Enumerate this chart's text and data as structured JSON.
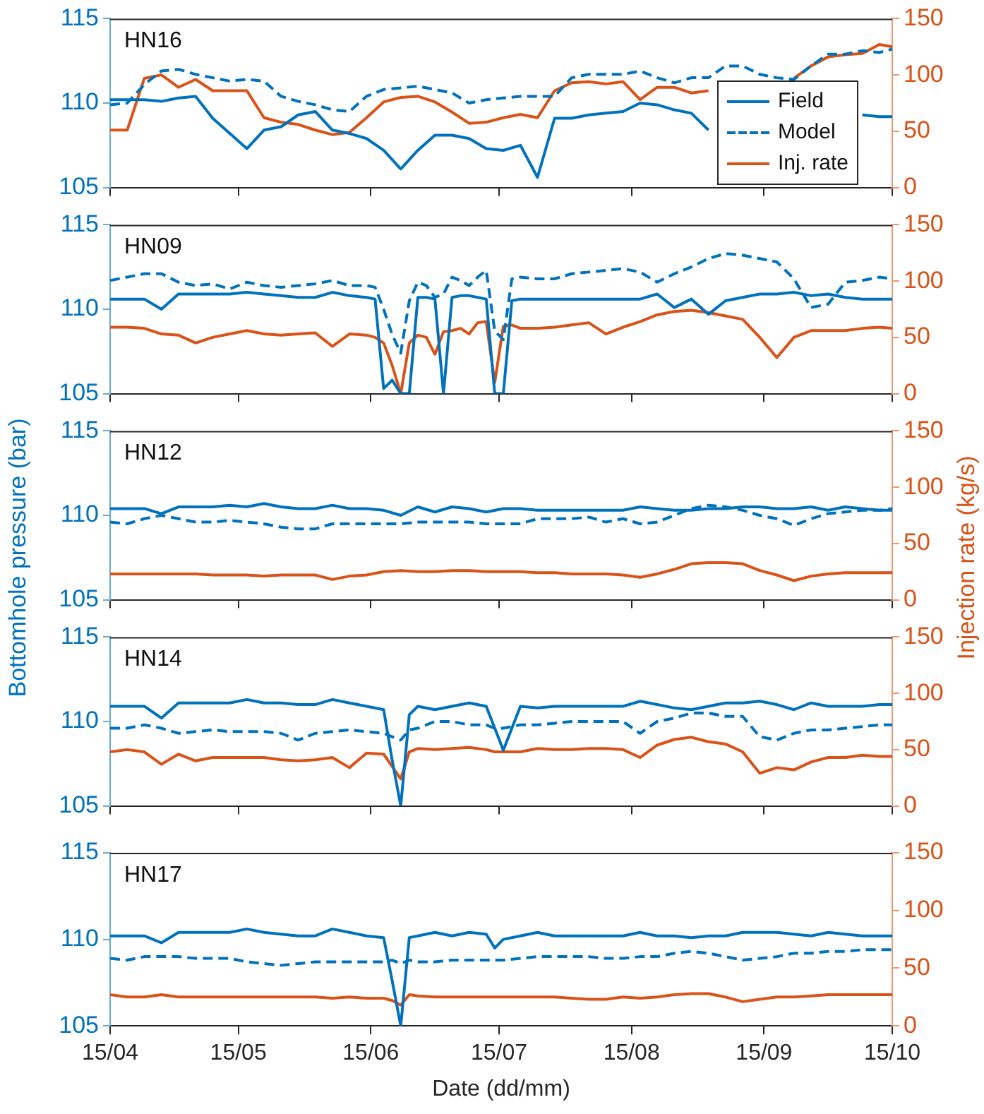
{
  "chart_data": [
    {
      "type": "line",
      "title": "HN16",
      "legend": "bottom right",
      "tick_labels": "y",
      "x": [
        "--04-15",
        "--04-19",
        "--04-23",
        "--04-27",
        "--05-01",
        "--05-05",
        "--05-09",
        "--05-13",
        "--05-17",
        "--05-21",
        "--05-25",
        "--05-29",
        "--06-02",
        "--06-06",
        "--06-10",
        "--06-14",
        "--06-18",
        "--06-22",
        "--06-26",
        "--06-30",
        "--07-04",
        "--07-08",
        "--07-12",
        "--07-16",
        "--07-20",
        "--07-24",
        "--07-28",
        "--08-01",
        "--08-05",
        "--08-09",
        "--08-13",
        "--08-17",
        "--08-21",
        "--08-25",
        "--08-29",
        "--09-02",
        "--09-06",
        "--09-10",
        "--09-14",
        "--09-18",
        "--09-22",
        "--09-26",
        "--09-30",
        "--10-04",
        "--10-08",
        "--10-12",
        "--10-15"
      ],
      "xlim": [
        "--04-15",
        "--10-15"
      ],
      "xticks": [
        {
          "value": "--04-15",
          "label": null
        },
        {
          "value": "--05-15",
          "label": null
        },
        {
          "value": "--06-15",
          "label": null
        },
        {
          "value": "--07-15",
          "label": null
        },
        {
          "value": "--08-15",
          "label": null
        },
        {
          "value": "--09-15",
          "label": null
        },
        {
          "value": "--10-15",
          "label": null
        }
      ],
      "ylim": [
        105,
        115
      ],
      "yticks": [
        105,
        110,
        115
      ],
      "y2lim": [
        0,
        150
      ],
      "y2ticks": [
        0,
        50,
        100,
        150
      ],
      "series": [
        {
          "name": "Field",
          "color": "#0072bd",
          "values": [
            110.2,
            110.2,
            110.2,
            110.1,
            110.3,
            110.4,
            109.1,
            108.2,
            107.3,
            108.4,
            108.6,
            109.3,
            109.5,
            108.4,
            108.2,
            107.9,
            107.2,
            106.1,
            107.2,
            108.1,
            108.1,
            107.9,
            107.3,
            107.2,
            107.5,
            105.6,
            109.1,
            109.1,
            109.3,
            109.4,
            109.5,
            110.0,
            109.9,
            109.6,
            109.4,
            108.4,
            null,
            null,
            null,
            null,
            null,
            null,
            null,
            null,
            109.3,
            109.2,
            109.2
          ]
        },
        {
          "name": "Model",
          "color": "#0072bd",
          "line_style": "dashed",
          "values": [
            109.9,
            110.0,
            111.1,
            111.9,
            112.0,
            111.7,
            111.5,
            111.3,
            111.4,
            111.3,
            110.4,
            110.1,
            109.9,
            109.6,
            109.5,
            110.4,
            110.8,
            110.9,
            111.0,
            110.8,
            110.6,
            110.0,
            110.2,
            110.3,
            110.4,
            110.4,
            110.4,
            111.5,
            111.7,
            111.7,
            111.7,
            111.9,
            111.5,
            111.2,
            111.5,
            111.5,
            112.2,
            112.2,
            111.7,
            111.5,
            111.4,
            112.2,
            112.9,
            112.9,
            113.1,
            113.0,
            113.2
          ]
        },
        {
          "name": "Inj. rate",
          "color": "#d95319",
          "axis": "y2",
          "values": [
            51,
            51,
            97,
            100,
            89,
            96,
            86,
            86,
            86,
            62,
            58,
            56,
            51,
            47,
            49,
            62,
            76,
            80,
            81,
            76,
            67,
            57,
            58,
            62,
            65,
            62,
            86,
            93,
            94,
            92,
            94,
            78,
            89,
            89,
            84,
            86,
            null,
            null,
            null,
            null,
            97,
            108,
            116,
            118,
            119,
            127,
            125
          ]
        }
      ]
    },
    {
      "type": "line",
      "title": "HN09",
      "tick_labels": "y",
      "x": [
        "--04-15",
        "--04-19",
        "--04-23",
        "--04-27",
        "--05-01",
        "--05-05",
        "--05-09",
        "--05-13",
        "--05-17",
        "--05-21",
        "--05-25",
        "--05-29",
        "--06-02",
        "--06-06",
        "--06-10",
        "--06-14",
        "--06-16",
        "--06-18",
        "--06-20",
        "--06-22",
        "--06-24",
        "--06-26",
        "--06-28",
        "--06-30",
        "--07-02",
        "--07-04",
        "--07-06",
        "--07-08",
        "--07-10",
        "--07-12",
        "--07-14",
        "--07-16",
        "--07-18",
        "--07-20",
        "--07-24",
        "--07-28",
        "--08-01",
        "--08-05",
        "--08-09",
        "--08-13",
        "--08-17",
        "--08-21",
        "--08-25",
        "--08-29",
        "--09-02",
        "--09-06",
        "--09-10",
        "--09-14",
        "--09-18",
        "--09-22",
        "--09-26",
        "--09-30",
        "--10-04",
        "--10-08",
        "--10-12",
        "--10-15"
      ],
      "xlim": [
        "--04-15",
        "--10-15"
      ],
      "xticks": [
        {
          "value": "--04-15",
          "label": null
        },
        {
          "value": "--05-15",
          "label": null
        },
        {
          "value": "--06-15",
          "label": null
        },
        {
          "value": "--07-15",
          "label": null
        },
        {
          "value": "--08-15",
          "label": null
        },
        {
          "value": "--09-15",
          "label": null
        },
        {
          "value": "--10-15",
          "label": null
        }
      ],
      "ylim": [
        105,
        115
      ],
      "yticks": [
        105,
        110,
        115
      ],
      "y2lim": [
        0,
        150
      ],
      "y2ticks": [
        0,
        50,
        100,
        150
      ],
      "series": [
        {
          "color": "#0072bd",
          "values": [
            110.6,
            110.6,
            110.6,
            110.0,
            110.9,
            110.9,
            110.9,
            110.9,
            111.0,
            110.9,
            110.8,
            110.7,
            110.7,
            111.0,
            110.8,
            110.7,
            110.6,
            105.3,
            105.8,
            105.0,
            105.0,
            110.7,
            110.7,
            110.6,
            105.0,
            110.7,
            110.8,
            110.8,
            110.7,
            110.6,
            105.0,
            105.0,
            110.5,
            110.6,
            110.6,
            110.6,
            110.6,
            110.6,
            110.6,
            110.6,
            110.6,
            110.9,
            110.1,
            110.6,
            109.7,
            110.5,
            110.7,
            110.9,
            110.9,
            111.0,
            110.8,
            110.9,
            110.7,
            110.6,
            110.6,
            110.6
          ]
        },
        {
          "color": "#0072bd",
          "line_style": "dashed",
          "values": [
            111.7,
            111.9,
            112.1,
            112.1,
            111.6,
            111.4,
            111.5,
            111.2,
            111.6,
            111.4,
            111.3,
            111.4,
            111.5,
            111.7,
            111.4,
            111.4,
            111.3,
            110.0,
            108.5,
            107.4,
            110.5,
            111.6,
            111.4,
            110.7,
            110.9,
            111.9,
            111.7,
            111.4,
            111.9,
            112.3,
            108.7,
            108.2,
            111.8,
            111.9,
            111.8,
            111.8,
            112.1,
            112.2,
            112.3,
            112.4,
            112.2,
            111.6,
            112.1,
            112.5,
            113.0,
            113.3,
            113.2,
            113.0,
            112.8,
            111.8,
            110.1,
            110.3,
            111.6,
            111.7,
            111.9,
            111.8
          ]
        },
        {
          "color": "#d95319",
          "axis": "y2",
          "values": [
            59,
            59,
            58,
            53,
            52,
            45,
            50,
            53,
            56,
            53,
            52,
            53,
            54,
            42,
            53,
            52,
            50,
            45,
            25,
            0,
            45,
            52,
            50,
            35,
            55,
            56,
            58,
            53,
            63,
            64,
            10,
            60,
            61,
            58,
            58,
            59,
            61,
            63,
            53,
            59,
            64,
            70,
            73,
            74,
            72,
            69,
            66,
            50,
            32,
            50,
            56,
            56,
            56,
            58,
            59,
            58
          ]
        }
      ]
    },
    {
      "type": "line",
      "title": "HN12",
      "tick_labels": "y",
      "ylabel": "Bottomhole pressure (bar)",
      "y2label": "Injection rate (kg/s)",
      "x": [
        "--04-15",
        "--04-19",
        "--04-23",
        "--04-27",
        "--05-01",
        "--05-05",
        "--05-09",
        "--05-13",
        "--05-17",
        "--05-21",
        "--05-25",
        "--05-29",
        "--06-02",
        "--06-06",
        "--06-10",
        "--06-14",
        "--06-18",
        "--06-22",
        "--06-26",
        "--06-30",
        "--07-04",
        "--07-08",
        "--07-12",
        "--07-16",
        "--07-20",
        "--07-24",
        "--07-28",
        "--08-01",
        "--08-05",
        "--08-09",
        "--08-13",
        "--08-17",
        "--08-21",
        "--08-25",
        "--08-29",
        "--09-02",
        "--09-06",
        "--09-10",
        "--09-14",
        "--09-18",
        "--09-22",
        "--09-26",
        "--09-30",
        "--10-04",
        "--10-08",
        "--10-12",
        "--10-15"
      ],
      "xlim": [
        "--04-15",
        "--10-15"
      ],
      "xticks": [
        {
          "value": "--04-15",
          "label": null
        },
        {
          "value": "--05-15",
          "label": null
        },
        {
          "value": "--06-15",
          "label": null
        },
        {
          "value": "--07-15",
          "label": null
        },
        {
          "value": "--08-15",
          "label": null
        },
        {
          "value": "--09-15",
          "label": null
        },
        {
          "value": "--10-15",
          "label": null
        }
      ],
      "ylim": [
        105,
        115
      ],
      "yticks": [
        105,
        110,
        115
      ],
      "y2lim": [
        0,
        150
      ],
      "y2ticks": [
        0,
        50,
        100,
        150
      ],
      "series": [
        {
          "color": "#0072bd",
          "values": [
            110.4,
            110.4,
            110.4,
            110.1,
            110.5,
            110.5,
            110.5,
            110.6,
            110.5,
            110.7,
            110.5,
            110.4,
            110.4,
            110.6,
            110.4,
            110.4,
            110.3,
            110.0,
            110.5,
            110.2,
            110.5,
            110.4,
            110.2,
            110.4,
            110.4,
            110.3,
            110.3,
            110.3,
            110.3,
            110.3,
            110.3,
            110.5,
            110.4,
            110.3,
            110.3,
            110.4,
            110.4,
            110.5,
            110.5,
            110.4,
            110.4,
            110.5,
            110.3,
            110.5,
            110.4,
            110.3,
            110.3
          ]
        },
        {
          "color": "#0072bd",
          "line_style": "dashed",
          "values": [
            109.6,
            109.5,
            109.8,
            110.0,
            109.8,
            109.6,
            109.6,
            109.7,
            109.6,
            109.5,
            109.3,
            109.2,
            109.2,
            109.5,
            109.5,
            109.5,
            109.5,
            109.5,
            109.6,
            109.6,
            109.6,
            109.6,
            109.5,
            109.5,
            109.5,
            109.8,
            109.8,
            109.8,
            109.9,
            109.6,
            109.8,
            109.5,
            109.6,
            110.0,
            110.4,
            110.6,
            110.5,
            110.3,
            110.0,
            109.8,
            109.4,
            109.8,
            110.1,
            110.2,
            110.3,
            110.3,
            110.4
          ]
        },
        {
          "color": "#d95319",
          "axis": "y2",
          "values": [
            23,
            23,
            23,
            23,
            23,
            23,
            22,
            22,
            22,
            21,
            22,
            22,
            22,
            18,
            21,
            22,
            25,
            26,
            25,
            25,
            26,
            26,
            25,
            25,
            25,
            24,
            24,
            23,
            23,
            23,
            22,
            20,
            23,
            27,
            32,
            33,
            33,
            32,
            26,
            22,
            17,
            21,
            23,
            24,
            24,
            24,
            24
          ]
        }
      ]
    },
    {
      "type": "line",
      "title": "HN14",
      "tick_labels": "y",
      "x": [
        "--04-15",
        "--04-19",
        "--04-23",
        "--04-27",
        "--05-01",
        "--05-05",
        "--05-09",
        "--05-13",
        "--05-17",
        "--05-21",
        "--05-25",
        "--05-29",
        "--06-02",
        "--06-06",
        "--06-10",
        "--06-14",
        "--06-18",
        "--06-20",
        "--06-22",
        "--06-24",
        "--06-26",
        "--06-30",
        "--07-04",
        "--07-08",
        "--07-12",
        "--07-14",
        "--07-16",
        "--07-20",
        "--07-24",
        "--07-28",
        "--08-01",
        "--08-05",
        "--08-09",
        "--08-13",
        "--08-17",
        "--08-21",
        "--08-25",
        "--08-29",
        "--09-02",
        "--09-06",
        "--09-10",
        "--09-14",
        "--09-18",
        "--09-22",
        "--09-26",
        "--09-30",
        "--10-04",
        "--10-08",
        "--10-12",
        "--10-15"
      ],
      "xlim": [
        "--04-15",
        "--10-15"
      ],
      "xticks": [
        {
          "value": "--04-15",
          "label": null
        },
        {
          "value": "--05-15",
          "label": null
        },
        {
          "value": "--06-15",
          "label": null
        },
        {
          "value": "--07-15",
          "label": null
        },
        {
          "value": "--08-15",
          "label": null
        },
        {
          "value": "--09-15",
          "label": null
        },
        {
          "value": "--10-15",
          "label": null
        }
      ],
      "ylim": [
        105,
        115
      ],
      "yticks": [
        105,
        110,
        115
      ],
      "y2lim": [
        0,
        150
      ],
      "y2ticks": [
        0,
        50,
        100,
        150
      ],
      "series": [
        {
          "color": "#0072bd",
          "values": [
            110.9,
            110.9,
            110.9,
            110.2,
            111.1,
            111.1,
            111.1,
            111.1,
            111.3,
            111.1,
            111.1,
            111.0,
            111.0,
            111.3,
            111.1,
            110.9,
            110.7,
            107.7,
            105.0,
            110.4,
            110.9,
            110.7,
            110.9,
            111.1,
            110.9,
            109.6,
            108.3,
            110.9,
            110.8,
            110.9,
            110.9,
            110.9,
            110.9,
            110.9,
            111.2,
            111.0,
            110.8,
            110.7,
            110.9,
            111.1,
            111.1,
            111.2,
            111.0,
            110.7,
            111.1,
            110.9,
            110.9,
            110.9,
            111.0,
            111.0
          ]
        },
        {
          "color": "#0072bd",
          "line_style": "dashed",
          "values": [
            109.6,
            109.6,
            109.8,
            109.6,
            109.3,
            109.4,
            109.5,
            109.4,
            109.4,
            109.4,
            109.3,
            108.9,
            109.3,
            109.4,
            109.5,
            109.4,
            109.3,
            109.1,
            108.9,
            109.5,
            109.6,
            110.0,
            110.0,
            109.8,
            109.8,
            109.6,
            109.6,
            109.8,
            109.8,
            109.9,
            110.0,
            110.0,
            110.0,
            110.0,
            109.3,
            110.0,
            110.2,
            110.5,
            110.5,
            110.3,
            110.3,
            109.1,
            108.9,
            109.3,
            109.5,
            109.5,
            109.6,
            109.7,
            109.8,
            109.8
          ]
        },
        {
          "color": "#d95319",
          "axis": "y2",
          "values": [
            48,
            50,
            48,
            37,
            46,
            40,
            43,
            43,
            43,
            43,
            41,
            40,
            41,
            43,
            34,
            47,
            46,
            35,
            24,
            48,
            51,
            50,
            51,
            52,
            50,
            48,
            48,
            48,
            51,
            50,
            50,
            51,
            51,
            50,
            43,
            54,
            59,
            61,
            57,
            55,
            48,
            29,
            34,
            32,
            39,
            43,
            43,
            45,
            44,
            44
          ]
        }
      ]
    },
    {
      "type": "line",
      "title": "HN17",
      "xlabel": "Date (dd/mm)",
      "x": [
        "--04-15",
        "--04-19",
        "--04-23",
        "--04-27",
        "--05-01",
        "--05-05",
        "--05-09",
        "--05-13",
        "--05-17",
        "--05-21",
        "--05-25",
        "--05-29",
        "--06-02",
        "--06-06",
        "--06-10",
        "--06-14",
        "--06-18",
        "--06-20",
        "--06-22",
        "--06-24",
        "--06-26",
        "--06-30",
        "--07-04",
        "--07-08",
        "--07-12",
        "--07-14",
        "--07-16",
        "--07-20",
        "--07-24",
        "--07-28",
        "--08-01",
        "--08-05",
        "--08-09",
        "--08-13",
        "--08-17",
        "--08-21",
        "--08-25",
        "--08-29",
        "--09-02",
        "--09-06",
        "--09-10",
        "--09-14",
        "--09-18",
        "--09-22",
        "--09-26",
        "--09-30",
        "--10-04",
        "--10-08",
        "--10-12",
        "--10-15"
      ],
      "xlim": [
        "--04-15",
        "--10-15"
      ],
      "xticks": [
        {
          "value": "--04-15",
          "label": "15/04"
        },
        {
          "value": "--05-15",
          "label": "15/05"
        },
        {
          "value": "--06-15",
          "label": "15/06"
        },
        {
          "value": "--07-15",
          "label": "15/07"
        },
        {
          "value": "--08-15",
          "label": "15/08"
        },
        {
          "value": "--09-15",
          "label": "15/09"
        },
        {
          "value": "--10-15",
          "label": "15/10"
        }
      ],
      "ylim": [
        105,
        115
      ],
      "yticks": [
        105,
        110,
        115
      ],
      "y2lim": [
        0,
        150
      ],
      "y2ticks": [
        0,
        50,
        100,
        150
      ],
      "series": [
        {
          "color": "#0072bd",
          "values": [
            110.2,
            110.2,
            110.2,
            109.8,
            110.4,
            110.4,
            110.4,
            110.4,
            110.6,
            110.4,
            110.3,
            110.2,
            110.2,
            110.6,
            110.4,
            110.2,
            110.1,
            107.6,
            105.0,
            110.1,
            110.2,
            110.4,
            110.2,
            110.4,
            110.3,
            109.5,
            110.0,
            110.2,
            110.4,
            110.2,
            110.2,
            110.2,
            110.2,
            110.2,
            110.4,
            110.2,
            110.2,
            110.1,
            110.2,
            110.2,
            110.4,
            110.4,
            110.4,
            110.3,
            110.2,
            110.4,
            110.3,
            110.2,
            110.2,
            110.2
          ]
        },
        {
          "color": "#0072bd",
          "line_style": "dashed",
          "values": [
            108.9,
            108.8,
            109.0,
            109.0,
            109.0,
            108.9,
            108.9,
            108.9,
            108.7,
            108.6,
            108.5,
            108.6,
            108.7,
            108.7,
            108.7,
            108.7,
            108.7,
            108.8,
            108.6,
            108.8,
            108.7,
            108.7,
            108.8,
            108.8,
            108.8,
            108.8,
            108.8,
            108.9,
            109.0,
            109.0,
            109.0,
            109.0,
            108.9,
            108.9,
            109.0,
            109.0,
            109.2,
            109.3,
            109.2,
            109.0,
            108.8,
            108.9,
            109.0,
            109.2,
            109.2,
            109.3,
            109.3,
            109.4,
            109.4,
            109.4
          ]
        },
        {
          "color": "#d95319",
          "axis": "y2",
          "values": [
            27,
            25,
            25,
            27,
            25,
            25,
            25,
            25,
            25,
            25,
            25,
            25,
            25,
            24,
            25,
            24,
            24,
            22,
            18,
            27,
            26,
            25,
            25,
            25,
            25,
            25,
            25,
            25,
            25,
            25,
            24,
            23,
            23,
            25,
            24,
            25,
            27,
            28,
            28,
            25,
            21,
            23,
            25,
            25,
            26,
            27,
            27,
            27,
            27,
            27
          ]
        }
      ]
    }
  ]
}
